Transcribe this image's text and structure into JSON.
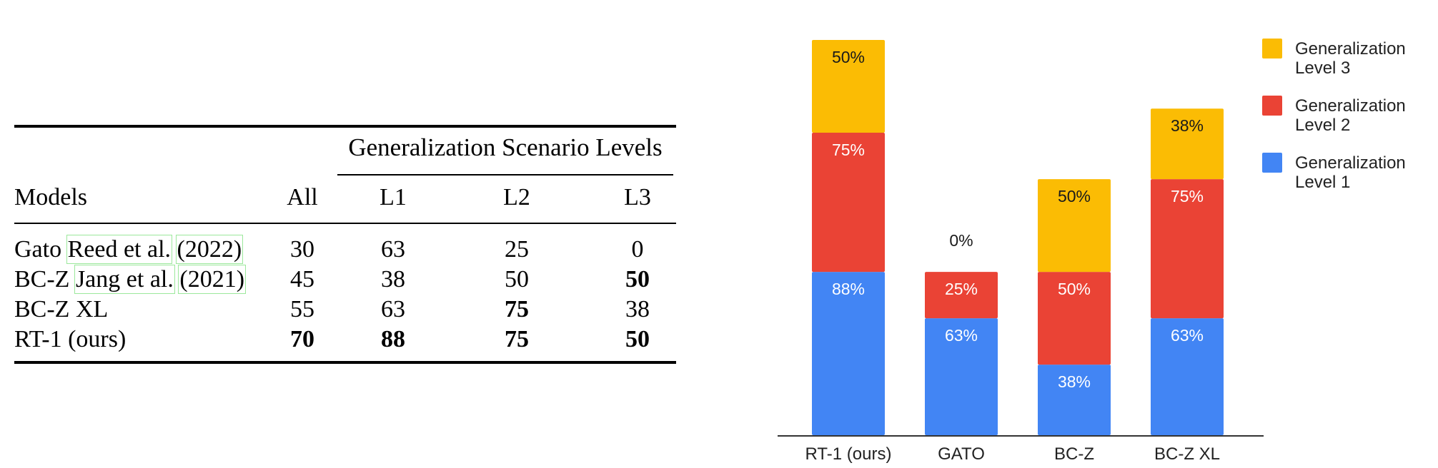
{
  "table": {
    "group_title": "Generalization Scenario Levels",
    "columns": [
      "Models",
      "All",
      "L1",
      "L2",
      "L3"
    ],
    "rows": [
      {
        "model": "Gato",
        "ref_name": "Reed et al.",
        "ref_year": "2022",
        "values": [
          "30",
          "63",
          "25",
          "0"
        ],
        "bold": [
          false,
          false,
          false,
          false
        ]
      },
      {
        "model": "BC-Z",
        "ref_name": "Jang et al.",
        "ref_year": "2021",
        "values": [
          "45",
          "38",
          "50",
          "50"
        ],
        "bold": [
          false,
          false,
          false,
          true
        ]
      },
      {
        "model": "BC-Z XL",
        "ref_name": "",
        "ref_year": "",
        "values": [
          "55",
          "63",
          "75",
          "38"
        ],
        "bold": [
          false,
          false,
          true,
          false
        ]
      },
      {
        "model": "RT-1 (ours)",
        "ref_name": "",
        "ref_year": "",
        "values": [
          "70",
          "88",
          "75",
          "50"
        ],
        "bold": [
          true,
          true,
          true,
          true
        ]
      }
    ]
  },
  "chart_data": {
    "type": "bar",
    "stacked": true,
    "categories": [
      "RT-1 (ours)",
      "GATO",
      "BC-Z",
      "BC-Z XL"
    ],
    "series": [
      {
        "name": "Generalization Level 1",
        "color": "#4285f4",
        "values": [
          88,
          63,
          38,
          63
        ],
        "labels": [
          "88%",
          "63%",
          "38%",
          "63%"
        ]
      },
      {
        "name": "Generalization Level 2",
        "color": "#ea4335",
        "values": [
          75,
          25,
          50,
          75
        ],
        "labels": [
          "75%",
          "25%",
          "50%",
          "75%"
        ]
      },
      {
        "name": "Generalization Level 3",
        "color": "#fbbc04",
        "values": [
          50,
          0,
          50,
          38
        ],
        "labels": [
          "50%",
          "0%",
          "50%",
          "38%"
        ]
      }
    ],
    "legend": {
      "position": "top-right",
      "entries": [
        {
          "line1": "Generalization",
          "line2": "Level 3",
          "color": "#fbbc04"
        },
        {
          "line1": "Generalization",
          "line2": "Level 2",
          "color": "#ea4335"
        },
        {
          "line1": "Generalization",
          "line2": "Level 1",
          "color": "#4285f4"
        }
      ]
    },
    "xlabel": "",
    "ylabel": "",
    "ylim": [
      0,
      213
    ],
    "grid": false
  }
}
